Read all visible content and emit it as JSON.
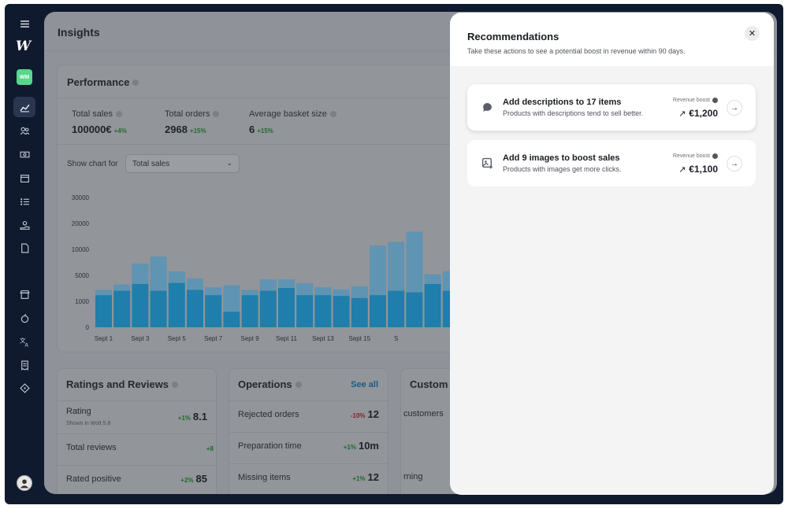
{
  "colors": {
    "sidebar_bg": "#101a2e",
    "overlay_bg": "#8f9298",
    "panel_bg": "#f4f4f5",
    "accent_blue": "#1d5a86",
    "bar_top": "#5f94b3",
    "bar_bottom": "#1f7eab",
    "positive": "#1e6b2f",
    "negative": "#8a1f1f"
  },
  "sidebar": {
    "logo": "W",
    "venue_badge": "WM",
    "icons": [
      "menu-icon",
      "chart-icon",
      "users-icon",
      "money-icon",
      "calendar-icon",
      "list-icon",
      "hand-coin-icon",
      "document-icon",
      "store-icon",
      "apple-icon",
      "translate-icon",
      "receipt-icon",
      "tag-icon"
    ]
  },
  "header": {
    "title": "Insights"
  },
  "performance": {
    "title": "Performance",
    "stats": [
      {
        "label": "Total sales",
        "value": "100000€",
        "delta": "+4%"
      },
      {
        "label": "Total orders",
        "value": "2968",
        "delta": "+15%"
      },
      {
        "label": "Average basket size",
        "value": "6",
        "delta": "+15%"
      }
    ],
    "show_chart_for_label": "Show chart for",
    "selected_metric": "Total sales"
  },
  "chart_data": {
    "type": "bar",
    "stacked": true,
    "y_tick_labels": [
      "30000",
      "20000",
      "10000",
      "5000",
      "1000",
      "0"
    ],
    "x_tick_labels": [
      "Sept 1",
      "Sept 3",
      "Sept 5",
      "Sept 7",
      "Sept 9",
      "Sept 11",
      "Sept 13",
      "Sept 15",
      "S"
    ],
    "categories": [
      "1",
      "2",
      "3",
      "4",
      "5",
      "6",
      "7",
      "8",
      "9",
      "10",
      "11",
      "12",
      "13",
      "14",
      "15",
      "16",
      "17",
      "18",
      "19",
      "20"
    ],
    "series": [
      {
        "values": [
          1950,
          2620,
          3670,
          2620,
          3820,
          2760,
          1950,
          600,
          1950,
          2620,
          3050,
          1950,
          1950,
          1830,
          1500,
          1950,
          2620,
          2380,
          3670,
          2620
        ]
      },
      {
        "values": [
          820,
          960,
          3620,
          5990,
          1950,
          1760,
          1210,
          2880,
          820,
          1760,
          1330,
          1830,
          1210,
          1010,
          1810,
          9480,
          10270,
          14410,
          1540,
          3210
        ]
      }
    ]
  },
  "ratings": {
    "title": "Ratings and Reviews",
    "rows": [
      {
        "label": "Rating",
        "sub": "Shown in Wolt 5.8",
        "delta": "+1%",
        "value": "8.1",
        "sign": "pos"
      },
      {
        "label": "Total reviews",
        "sub": "",
        "delta": "+8",
        "value": "",
        "sign": "pos"
      },
      {
        "label": "Rated positive",
        "sub": "",
        "delta": "+2%",
        "value": "85",
        "sign": "pos"
      }
    ]
  },
  "operations": {
    "title": "Operations",
    "see_all": "See all",
    "rows": [
      {
        "label": "Rejected orders",
        "delta": "-10%",
        "value": "12",
        "sign": "neg"
      },
      {
        "label": "Preparation time",
        "delta": "+1%",
        "value": "10m",
        "sign": "pos"
      },
      {
        "label": "Missing items",
        "delta": "+1%",
        "value": "12",
        "sign": "pos"
      }
    ]
  },
  "customers": {
    "title": "Custom",
    "rows": [
      {
        "label": "customers"
      },
      {
        "label": ""
      },
      {
        "label": "rning"
      }
    ]
  },
  "recommendations": {
    "title": "Recommendations",
    "subtitle": "Take these actions to see a potential boost in revenue within 90 days.",
    "items": [
      {
        "icon": "chat-bubble-icon",
        "title": "Add descriptions to 17 items",
        "subtitle": "Products with descriptions tend to sell better.",
        "boost_label": "Revenue boost",
        "boost_value": "€1,200"
      },
      {
        "icon": "image-add-icon",
        "title": "Add 9 images to boost sales",
        "subtitle": "Products with images get more clicks.",
        "boost_label": "Revenue boost",
        "boost_value": "€1,100"
      }
    ]
  }
}
